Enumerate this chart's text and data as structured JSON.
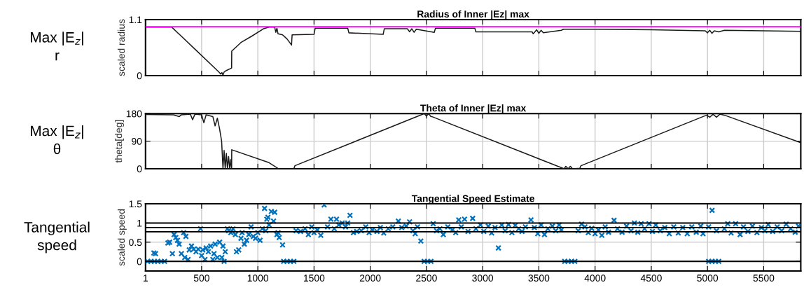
{
  "chart_data": [
    {
      "type": "line",
      "title": "Radius of Inner |Ez| max",
      "ylabel": "scaled radius",
      "annotations": [
        "Max |E$_{z}$|\nr"
      ],
      "xlim": [
        1,
        5830
      ],
      "ylim": [
        0,
        1.1
      ],
      "xticks": [
        {
          "value": 1,
          "label": null
        },
        {
          "value": 500,
          "label": null
        },
        {
          "value": 1000,
          "label": null
        },
        {
          "value": 1500,
          "label": null
        },
        {
          "value": 2000,
          "label": null
        },
        {
          "value": 2500,
          "label": null
        },
        {
          "value": 3000,
          "label": null
        },
        {
          "value": 3500,
          "label": null
        },
        {
          "value": 4000,
          "label": null
        },
        {
          "value": 4500,
          "label": null
        },
        {
          "value": 5000,
          "label": null
        },
        {
          "value": 5500,
          "label": null
        }
      ],
      "yticks": [
        0,
        1.1
      ],
      "tick_labels": "y",
      "grid": true,
      "ref_lines": [
        {
          "axis": "y",
          "value": 0.96,
          "color": "#ff00ff"
        }
      ],
      "x": [
        1,
        235,
        450,
        650,
        670,
        680,
        690,
        700,
        720,
        767,
        768,
        850,
        950,
        1050,
        1100,
        1150,
        1160,
        1170,
        1180,
        1220,
        1260,
        1300,
        1305,
        1500,
        1510,
        1800,
        1810,
        2115,
        2125,
        2330,
        2350,
        2370,
        2390,
        2410,
        2570,
        2580,
        2930,
        2940,
        3440,
        3450,
        3480,
        3500,
        3520,
        3540,
        3700,
        3720,
        4000,
        4500,
        4980,
        5000,
        5020,
        5040,
        5060,
        5100,
        5150,
        5500,
        5830
      ],
      "series": [
        {
          "color": "#1a1a1a",
          "values": [
            0.95,
            0.95,
            0.5,
            0.08,
            0.03,
            0.06,
            0.01,
            0.07,
            0.1,
            0.15,
            0.48,
            0.65,
            0.78,
            0.92,
            0.95,
            0.95,
            0.85,
            0.93,
            0.82,
            0.8,
            0.72,
            0.6,
            0.8,
            0.81,
            0.93,
            0.93,
            0.84,
            0.81,
            0.92,
            0.92,
            0.86,
            0.92,
            0.85,
            0.91,
            0.85,
            0.93,
            0.93,
            0.86,
            0.86,
            0.82,
            0.9,
            0.83,
            0.89,
            0.84,
            0.89,
            0.91,
            0.91,
            0.9,
            0.88,
            0.84,
            0.89,
            0.83,
            0.88,
            0.86,
            0.89,
            0.88,
            0.87
          ]
        }
      ]
    },
    {
      "type": "line",
      "title": "Theta of Inner |Ez| max",
      "ylabel": "theta[deg]",
      "annotations": [
        "Max |E$_{z}$|\nθ"
      ],
      "xlim": [
        1,
        5830
      ],
      "ylim": [
        0,
        180
      ],
      "xticks": [
        {
          "value": 1,
          "label": null
        },
        {
          "value": 500,
          "label": null
        },
        {
          "value": 1000,
          "label": null
        },
        {
          "value": 1500,
          "label": null
        },
        {
          "value": 2000,
          "label": null
        },
        {
          "value": 2500,
          "label": null
        },
        {
          "value": 3000,
          "label": null
        },
        {
          "value": 3500,
          "label": null
        },
        {
          "value": 4000,
          "label": null
        },
        {
          "value": 4500,
          "label": null
        },
        {
          "value": 5000,
          "label": null
        },
        {
          "value": 5500,
          "label": null
        }
      ],
      "yticks": [
        0,
        90,
        180
      ],
      "tick_labels": "y",
      "grid": true,
      "x": [
        1,
        250,
        300,
        320,
        400,
        420,
        440,
        500,
        520,
        540,
        600,
        620,
        640,
        660,
        678,
        690,
        700,
        710,
        720,
        730,
        740,
        750,
        760,
        767,
        768,
        1100,
        1185,
        1320,
        1330,
        2480,
        2500,
        2520,
        2540,
        2550,
        3725,
        3740,
        3760,
        3780,
        3800,
        3865,
        3875,
        4993,
        5020,
        5050,
        5080,
        5110,
        5150,
        5830
      ],
      "series": [
        {
          "color": "#1a1a1a",
          "values": [
            177,
            176,
            170,
            176,
            178,
            160,
            178,
            176,
            150,
            176,
            170,
            140,
            165,
            130,
            90,
            0,
            60,
            0,
            50,
            0,
            40,
            0,
            30,
            0,
            62,
            20,
            0,
            0,
            10,
            180,
            172,
            180,
            170,
            170,
            0,
            8,
            0,
            8,
            0,
            2,
            10,
            175,
            168,
            178,
            168,
            178,
            175,
            85
          ]
        }
      ]
    },
    {
      "type": "scatter",
      "title": "Tangential Speed Estimate",
      "ylabel": "scaled speed",
      "annotations": [
        "Tangential\nspeed"
      ],
      "xlim": [
        1,
        5830
      ],
      "ylim": [
        -0.25,
        1.5
      ],
      "xticks": [
        1,
        500,
        1000,
        1500,
        2000,
        2500,
        3000,
        3500,
        4000,
        4500,
        5000,
        5500
      ],
      "yticks": [
        0,
        0.5,
        1,
        1.5
      ],
      "grid": true,
      "marker": "cross",
      "ref_lines": [
        {
          "axis": "y",
          "value": 1.0,
          "color": "#000000"
        },
        {
          "axis": "y",
          "value": 0.88,
          "color": "#000000"
        },
        {
          "axis": "y",
          "value": 0.77,
          "color": "#000000"
        },
        {
          "axis": "y",
          "value": 0,
          "color": "#000000"
        }
      ],
      "series": [
        {
          "color": "#0072bd",
          "x": [
            20,
            50,
            75,
            80,
            90,
            110,
            140,
            170,
            200,
            215,
            240,
            255,
            270,
            285,
            300,
            320,
            340,
            350,
            360,
            380,
            390,
            410,
            430,
            450,
            470,
            490,
            500,
            510,
            530,
            540,
            560,
            580,
            600,
            610,
            620,
            640,
            660,
            680,
            690,
            700,
            710,
            730,
            740,
            760,
            780,
            800,
            810,
            830,
            850,
            860,
            880,
            900,
            920,
            940,
            960,
            980,
            1000,
            1020,
            1040,
            1060,
            1070,
            1080,
            1090,
            1100,
            1120,
            1140,
            1150,
            1170,
            1180,
            1190,
            1220,
            1230,
            1260,
            1290,
            1320,
            1340,
            1380,
            1420,
            1450,
            1480,
            1500,
            1530,
            1560,
            1590,
            1620,
            1650,
            1680,
            1700,
            1720,
            1750,
            1780,
            1800,
            1820,
            1850,
            1880,
            1920,
            1960,
            1990,
            2020,
            2060,
            2090,
            2120,
            2160,
            2200,
            2250,
            2280,
            2320,
            2350,
            2380,
            2400,
            2420,
            2450,
            2480,
            2510,
            2540,
            2560,
            2590,
            2620,
            2650,
            2690,
            2730,
            2760,
            2787,
            2810,
            2839,
            2870,
            2911,
            2940,
            2980,
            3010,
            3050,
            3080,
            3110,
            3140,
            3170,
            3200,
            3230,
            3260,
            3290,
            3320,
            3350,
            3380,
            3430,
            3460,
            3490,
            3520,
            3550,
            3580,
            3620,
            3650,
            3680,
            3700,
            3730,
            3760,
            3790,
            3820,
            3850,
            3880,
            3910,
            3940,
            3970,
            4000,
            4030,
            4060,
            4090,
            4120,
            4169,
            4200,
            4240,
            4280,
            4320,
            4350,
            4380,
            4410,
            4440,
            4480,
            4510,
            4540,
            4580,
            4620,
            4660,
            4700,
            4740,
            4780,
            4820,
            4860,
            4900,
            4940,
            4960,
            5010,
            5010,
            5040,
            5041,
            5070,
            5080,
            5100,
            5150,
            5180,
            5210,
            5250,
            5290,
            5320,
            5360,
            5400,
            5440,
            5480,
            5510,
            5540,
            5580,
            5620,
            5660,
            5700,
            5740,
            5780,
            5810
          ],
          "values": [
            0,
            0,
            0.22,
            0,
            0.2,
            0,
            0,
            0,
            0.48,
            0.5,
            0.2,
            0.7,
            0.62,
            0.55,
            0.45,
            0.2,
            0.75,
            0.1,
            0.65,
            0.05,
            0.3,
            0.4,
            0.32,
            0.25,
            0.32,
            0.85,
            0.15,
            0.3,
            0.05,
            0.35,
            0.25,
            0.4,
            0.05,
            0.2,
            0.45,
            0.1,
            0.5,
            0.1,
            0.4,
            0,
            0.25,
            0.85,
            0.8,
            0.75,
            0.85,
            0.7,
            0.25,
            0.3,
            0.6,
            0.75,
            0.45,
            0.55,
            0.7,
            0.9,
            0.65,
            0.6,
            0.75,
            0.55,
            0.85,
            1.38,
            0.8,
            1.1,
            1.15,
            0.95,
            1.3,
            1.05,
            1.28,
            0.7,
            0.75,
            0.62,
            0.43,
            0,
            0,
            0,
            0,
            0.8,
            0.78,
            0.85,
            0.7,
            0.9,
            0.75,
            0.82,
            0.68,
            1.47,
            0.9,
            1.1,
            0.85,
            1.1,
            0.95,
            1.0,
            0.9,
            1.0,
            1.2,
            0.75,
            0.78,
            0.8,
            0.9,
            0.75,
            0.82,
            0.78,
            0.88,
            0.74,
            0.85,
            0.9,
            1.05,
            0.88,
            0.92,
            1.03,
            0.8,
            0.72,
            0.9,
            0.53,
            0,
            0,
            0,
            0.98,
            0.8,
            0.85,
            0.7,
            0.9,
            0.82,
            0.75,
            1.08,
            0.9,
            1.1,
            0.78,
            1.12,
            0.85,
            0.95,
            0.78,
            0.92,
            0.74,
            0.88,
            0.35,
            0.95,
            0.8,
            0.96,
            0.75,
            0.94,
            0.85,
            0.78,
            0.9,
            1.08,
            0.88,
            0.72,
            0.95,
            0.7,
            0.85,
            0.92,
            0.8,
            0.95,
            0.82,
            0,
            0,
            0,
            0,
            0.8,
            0.97,
            0.9,
            0.75,
            0.86,
            0.72,
            0.82,
            0.68,
            0.9,
            0.76,
            1.07,
            0.85,
            0.76,
            0.92,
            0.8,
            1.0,
            0.76,
            0.98,
            0.85,
            0.98,
            0.78,
            0.95,
            0.8,
            0.88,
            0.72,
            0.9,
            0.74,
            0.88,
            0.72,
            0.9,
            0.76,
            0.92,
            0.72,
            0,
            0.9,
            0,
            1.33,
            0,
            0.8,
            0,
            0.85,
            0.98,
            0.74,
            0.98,
            0.7,
            0.9,
            0.78,
            0.92,
            0.75,
            0.88,
            0.8,
            0.96,
            0.78,
            0.9,
            0.8,
            0.97,
            0.85,
            0.76,
            0.92
          ]
        }
      ]
    }
  ]
}
